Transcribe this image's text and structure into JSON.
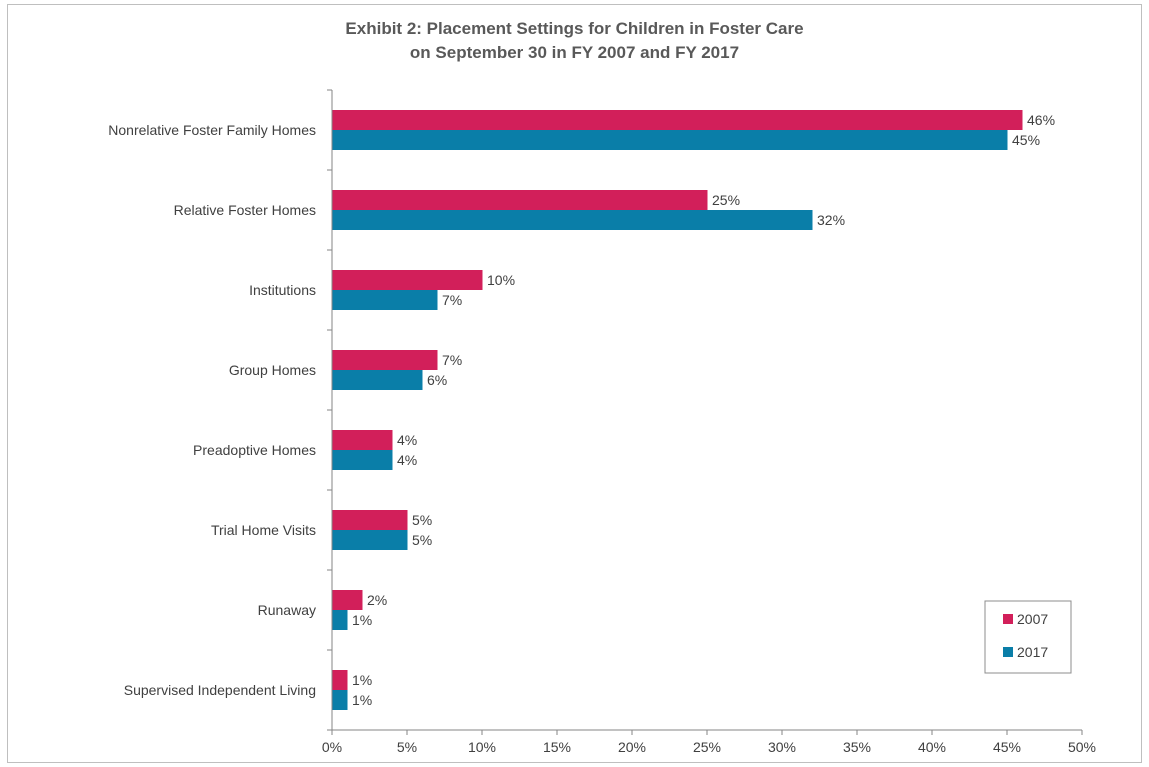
{
  "chart_data": {
    "type": "bar",
    "orientation": "horizontal",
    "title_line1": "Exhibit 2: Placement Settings for Children in Foster Care",
    "title_line2": "on September 30 in FY 2007 and FY 2017",
    "categories": [
      "Nonrelative Foster Family Homes",
      "Relative Foster Homes",
      "Institutions",
      "Group Homes",
      "Preadoptive Homes",
      "Trial Home Visits",
      "Runaway",
      "Supervised Independent Living"
    ],
    "series": [
      {
        "name": "2007",
        "color": "#d21f5a",
        "values": [
          46,
          25,
          10,
          7,
          4,
          5,
          2,
          1
        ],
        "labels": [
          "46%",
          "25%",
          "10%",
          "7%",
          "4%",
          "5%",
          "2%",
          "1%"
        ]
      },
      {
        "name": "2017",
        "color": "#0a7ea8",
        "values": [
          45,
          32,
          7,
          6,
          4,
          5,
          1,
          1
        ],
        "labels": [
          "45%",
          "32%",
          "7%",
          "6%",
          "4%",
          "5%",
          "1%",
          "1%"
        ]
      }
    ],
    "xlim": [
      0,
      50
    ],
    "x_ticks": [
      0,
      5,
      10,
      15,
      20,
      25,
      30,
      35,
      40,
      45,
      50
    ],
    "x_tick_labels": [
      "0%",
      "5%",
      "10%",
      "15%",
      "20%",
      "25%",
      "30%",
      "35%",
      "40%",
      "45%",
      "50%"
    ],
    "grid": false,
    "legend_position": "right, lower"
  }
}
